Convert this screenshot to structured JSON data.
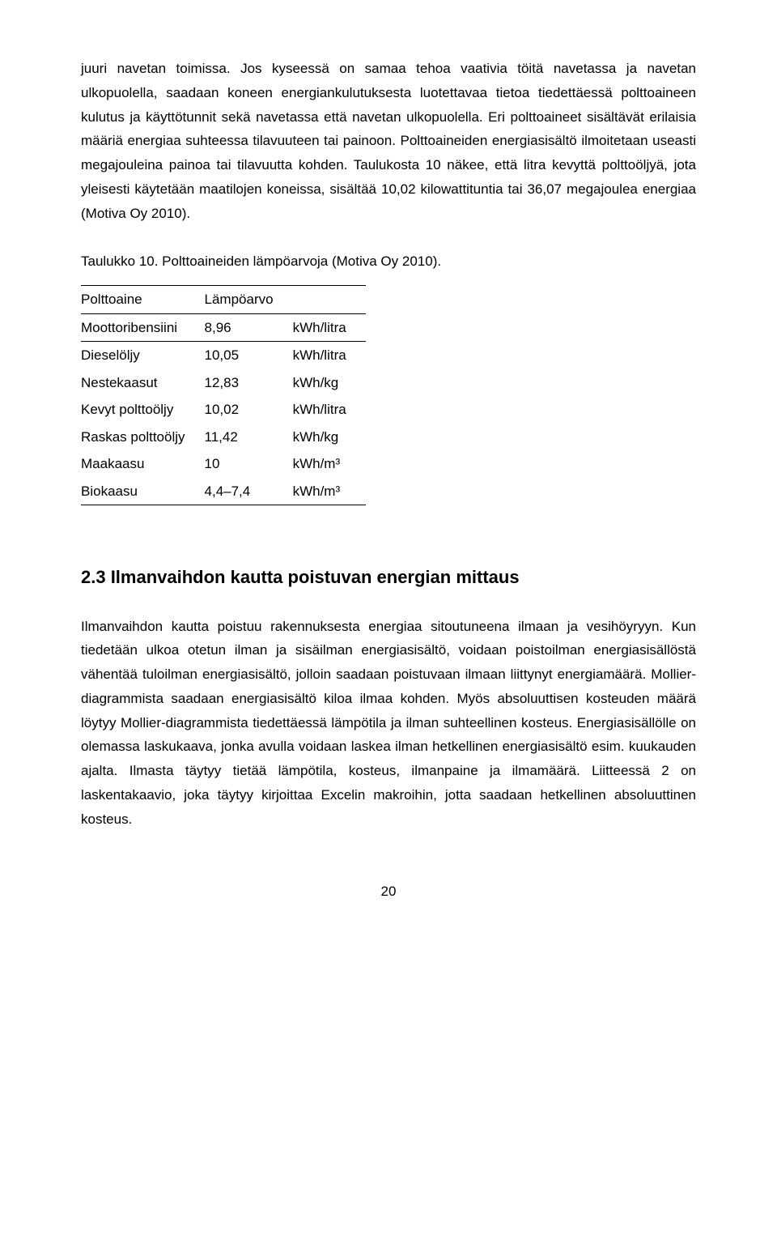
{
  "para1": "juuri navetan toimissa. Jos kyseessä on samaa tehoa vaativia töitä navetassa ja navetan ulkopuolella, saadaan koneen energiankulutuksesta luotettavaa tietoa tiedettäessä polttoaineen kulutus ja käyttötunnit sekä navetassa että navetan ulkopuolella. Eri polttoaineet sisältävät erilaisia määriä energiaa suhteessa tilavuuteen tai painoon. Polttoaineiden energiasisältö ilmoitetaan useasti megajouleina painoa tai tilavuutta kohden. Taulukosta 10 näkee, että litra kevyttä polttoöljyä, jota yleisesti käytetään maatilojen koneissa, sisältää 10,02 kilowattituntia tai 36,07 megajoulea energiaa (Motiva Oy 2010).",
  "table_caption": "Taulukko 10. Polttoaineiden lämpöarvoja (Motiva Oy 2010).",
  "table": {
    "header": [
      "Polttoaine",
      "Lämpöarvo",
      ""
    ],
    "rows": [
      [
        "Moottoribensiini",
        "8,96",
        "kWh/litra"
      ],
      [
        "Dieselöljy",
        "10,05",
        "kWh/litra"
      ],
      [
        "Nestekaasut",
        "12,83",
        "kWh/kg"
      ],
      [
        "Kevyt polttoöljy",
        "10,02",
        "kWh/litra"
      ],
      [
        "Raskas polttoöljy",
        "11,42",
        "kWh/kg"
      ],
      [
        "Maakaasu",
        "10",
        "kWh/m³"
      ],
      [
        "Biokaasu",
        "4,4–7,4",
        "kWh/m³"
      ]
    ]
  },
  "section_heading": "2.3 Ilmanvaihdon kautta poistuvan energian mittaus",
  "para2": "Ilmanvaihdon kautta poistuu rakennuksesta energiaa sitoutuneena ilmaan ja vesihöyryyn. Kun tiedetään ulkoa otetun ilman ja sisäilman energiasisältö, voidaan poistoilman energiasisällöstä vähentää tuloilman energiasisältö, jolloin saadaan poistuvaan ilmaan liittynyt energiamäärä. Mollier-diagrammista saadaan energiasisältö kiloa ilmaa kohden. Myös absoluuttisen kosteuden määrä löytyy Mollier-diagrammista tiedettäessä lämpötila ja ilman suhteellinen kosteus. Energiasisällölle on olemassa laskukaava, jonka avulla voidaan laskea ilman hetkellinen energiasisältö esim. kuukauden ajalta.  Ilmasta täytyy tietää lämpötila, kosteus, ilmanpaine ja ilmamäärä. Liitteessä 2 on laskentakaavio, joka täytyy kirjoittaa Excelin makroihin, jotta saadaan hetkellinen absoluuttinen kosteus.",
  "page_number": "20"
}
